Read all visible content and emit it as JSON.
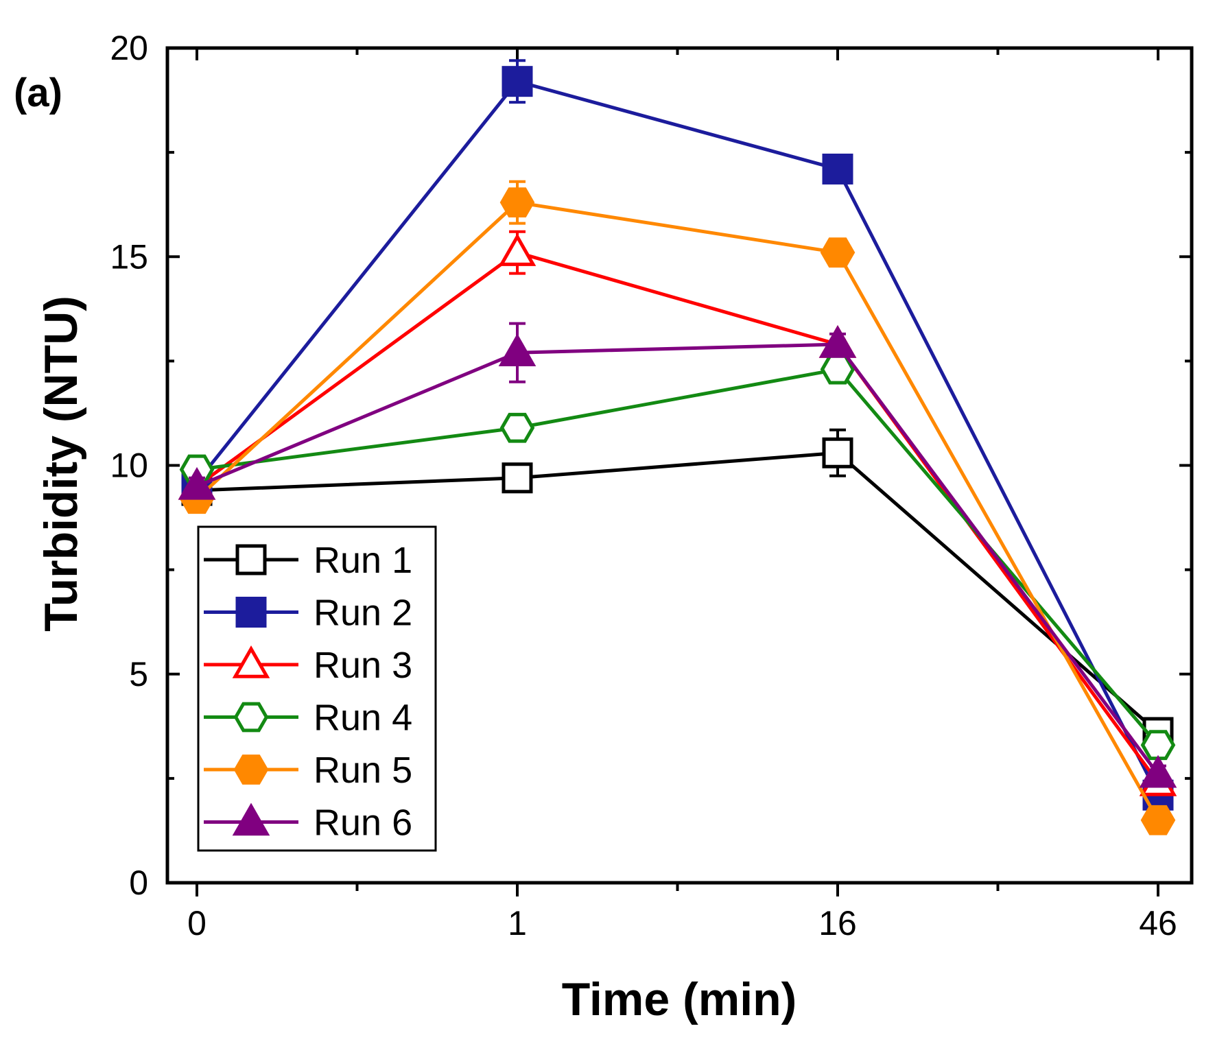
{
  "chart_data": {
    "type": "line",
    "panel_label": "(a)",
    "title": "",
    "xlabel": "Time (min)",
    "ylabel": "Turbidity (NTU)",
    "categories": [
      "0",
      "1",
      "16",
      "46"
    ],
    "x_tick_labels": [
      "0",
      "1",
      "16",
      "46"
    ],
    "ylim": [
      0,
      20
    ],
    "y_ticks": [
      0,
      5,
      10,
      15,
      20
    ],
    "y_tick_labels": [
      "0",
      "5",
      "10",
      "15",
      "20"
    ],
    "y_minor_ticks": [
      2.5,
      7.5,
      12.5,
      17.5
    ],
    "legend_position": "bottom-left",
    "series": [
      {
        "name": "Run 1",
        "color": "#000000",
        "marker": "square",
        "filled": false,
        "values": [
          9.4,
          9.7,
          10.3,
          3.6
        ],
        "errors": [
          0.15,
          0.2,
          0.55,
          0.15
        ]
      },
      {
        "name": "Run 2",
        "color": "#1c1c9c",
        "marker": "square",
        "filled": true,
        "values": [
          9.6,
          19.2,
          17.1,
          2.1
        ],
        "errors": [
          0.15,
          0.5,
          0.1,
          0.2
        ]
      },
      {
        "name": "Run 3",
        "color": "#ff0000",
        "marker": "triangle",
        "filled": false,
        "values": [
          9.5,
          15.1,
          12.9,
          2.4
        ],
        "errors": [
          0.15,
          0.5,
          0.1,
          0.15
        ]
      },
      {
        "name": "Run 4",
        "color": "#138a13",
        "marker": "hexagon",
        "filled": false,
        "values": [
          9.9,
          10.9,
          12.3,
          3.3
        ],
        "errors": [
          0.15,
          0.1,
          0.2,
          0.2
        ]
      },
      {
        "name": "Run 5",
        "color": "#ff8800",
        "marker": "hexagon",
        "filled": true,
        "values": [
          9.2,
          16.3,
          15.1,
          1.5
        ],
        "errors": [
          0.3,
          0.5,
          0.1,
          0.1
        ]
      },
      {
        "name": "Run 6",
        "color": "#800080",
        "marker": "triangle",
        "filled": true,
        "values": [
          9.5,
          12.7,
          12.9,
          2.6
        ],
        "errors": [
          0.2,
          0.7,
          0.25,
          0.2
        ]
      }
    ]
  }
}
